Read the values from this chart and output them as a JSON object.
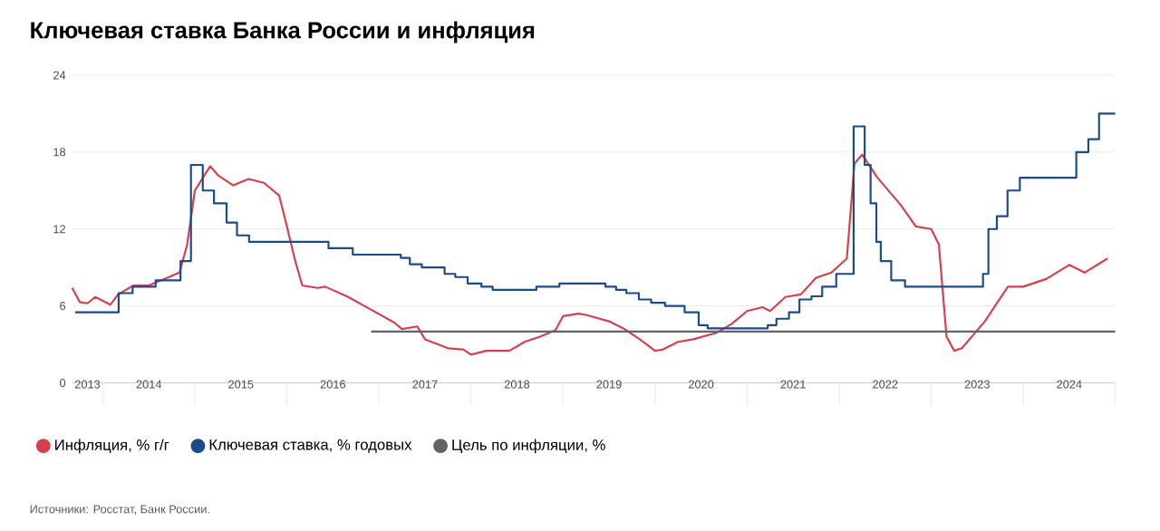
{
  "chart_data": {
    "type": "line",
    "title": "Ключевая ставка Банка России и инфляция",
    "series": [
      {
        "name": "Инфляция, % г/г",
        "color": "#d6404c",
        "x": [
          "2013-09",
          "2013-10",
          "2013-11",
          "2013-12",
          "2014-02",
          "2014-03",
          "2014-05",
          "2014-07",
          "2014-09",
          "2014-11",
          "2014-12",
          "2015-01",
          "2015-03",
          "2015-04",
          "2015-06",
          "2015-08",
          "2015-10",
          "2015-12",
          "2016-01",
          "2016-02",
          "2016-03",
          "2016-05",
          "2016-06",
          "2016-09",
          "2016-12",
          "2017-03",
          "2017-04",
          "2017-06",
          "2017-07",
          "2017-10",
          "2017-12",
          "2018-01",
          "2018-03",
          "2018-06",
          "2018-08",
          "2018-10",
          "2018-12",
          "2019-01",
          "2019-03",
          "2019-04",
          "2019-07",
          "2019-09",
          "2019-11",
          "2020-01",
          "2020-02",
          "2020-04",
          "2020-06",
          "2020-09",
          "2020-11",
          "2021-01",
          "2021-03",
          "2021-04",
          "2021-06",
          "2021-08",
          "2021-10",
          "2021-12",
          "2022-02",
          "2022-03",
          "2022-04",
          "2022-06",
          "2022-09",
          "2022-11",
          "2023-01",
          "2023-02",
          "2023-03",
          "2023-04",
          "2023-05",
          "2023-08",
          "2023-11",
          "2024-01",
          "2024-04",
          "2024-07",
          "2024-09",
          "2024-12"
        ],
        "values": [
          7.4,
          6.3,
          6.2,
          6.7,
          6.1,
          6.9,
          7.6,
          7.6,
          8.1,
          8.6,
          10.8,
          15.0,
          16.9,
          16.2,
          15.4,
          15.9,
          15.6,
          14.6,
          12.2,
          9.7,
          7.6,
          7.4,
          7.5,
          6.7,
          5.7,
          4.7,
          4.2,
          4.4,
          3.4,
          2.7,
          2.6,
          2.2,
          2.5,
          2.5,
          3.2,
          3.6,
          4.1,
          5.2,
          5.4,
          5.3,
          4.8,
          4.2,
          3.4,
          2.5,
          2.6,
          3.2,
          3.4,
          3.9,
          4.6,
          5.6,
          5.9,
          5.6,
          6.7,
          6.9,
          8.2,
          8.6,
          9.7,
          17.1,
          17.8,
          16.0,
          13.9,
          12.2,
          12.0,
          10.8,
          3.6,
          2.5,
          2.7,
          4.8,
          7.5,
          7.5,
          8.1,
          9.2,
          8.6,
          9.7
        ]
      },
      {
        "name": "Ключевая ставка, % годовых",
        "color": "#1d4a8a",
        "type": "step",
        "x": [
          "2013-09-13",
          "2014-03-03",
          "2014-04-28",
          "2014-07-28",
          "2014-11-05",
          "2014-12-16",
          "2015-02-02",
          "2015-03-16",
          "2015-05-05",
          "2015-06-16",
          "2015-08-03",
          "2016-06-14",
          "2016-09-19",
          "2017-03-27",
          "2017-05-02",
          "2017-06-19",
          "2017-09-18",
          "2017-10-30",
          "2017-12-18",
          "2018-02-12",
          "2018-03-26",
          "2018-09-17",
          "2018-12-17",
          "2019-06-17",
          "2019-07-29",
          "2019-09-09",
          "2019-10-28",
          "2019-12-16",
          "2020-02-10",
          "2020-04-27",
          "2020-06-22",
          "2020-07-27",
          "2021-03-22",
          "2021-04-26",
          "2021-06-15",
          "2021-07-26",
          "2021-09-13",
          "2021-10-25",
          "2021-12-20",
          "2022-02-28",
          "2022-04-11",
          "2022-05-04",
          "2022-05-27",
          "2022-06-14",
          "2022-07-25",
          "2022-09-19",
          "2023-07-24",
          "2023-08-15",
          "2023-09-18",
          "2023-10-30",
          "2023-12-18",
          "2024-07-29",
          "2024-09-16",
          "2024-10-28",
          "2025-01"
        ],
        "values": [
          5.5,
          7.0,
          7.5,
          8.0,
          9.5,
          17.0,
          15.0,
          14.0,
          12.5,
          11.5,
          11.0,
          10.5,
          10.0,
          9.75,
          9.25,
          9.0,
          8.5,
          8.25,
          7.75,
          7.5,
          7.25,
          7.5,
          7.75,
          7.5,
          7.25,
          7.0,
          6.5,
          6.25,
          6.0,
          5.5,
          4.5,
          4.25,
          4.5,
          5.0,
          5.5,
          6.5,
          6.75,
          7.5,
          8.5,
          20,
          17,
          14,
          11,
          9.5,
          8.0,
          7.5,
          8.5,
          12,
          13,
          15,
          16,
          18,
          19,
          21,
          21
        ]
      },
      {
        "name": "Цель по инфляции, %",
        "color": "#5f6469",
        "x": [
          "2016-12",
          "2025-01"
        ],
        "values": [
          4,
          4
        ]
      }
    ],
    "xlim": [
      "2013-09",
      "2025-01"
    ],
    "xticks": [
      {
        "value": "2013-11",
        "label": "2013"
      },
      {
        "value": "2014-01",
        "label": null
      },
      {
        "value": "2014-07",
        "label": "2014"
      },
      {
        "value": "2015-01",
        "label": null
      },
      {
        "value": "2015-07",
        "label": "2015"
      },
      {
        "value": "2016-01",
        "label": null
      },
      {
        "value": "2016-07",
        "label": "2016"
      },
      {
        "value": "2017-01",
        "label": null
      },
      {
        "value": "2017-07",
        "label": "2017"
      },
      {
        "value": "2018-01",
        "label": null
      },
      {
        "value": "2018-07",
        "label": "2018"
      },
      {
        "value": "2019-01",
        "label": null
      },
      {
        "value": "2019-07",
        "label": "2019"
      },
      {
        "value": "2020-01",
        "label": null
      },
      {
        "value": "2020-07",
        "label": "2020"
      },
      {
        "value": "2021-01",
        "label": null
      },
      {
        "value": "2021-07",
        "label": "2021"
      },
      {
        "value": "2022-01",
        "label": null
      },
      {
        "value": "2022-07",
        "label": "2022"
      },
      {
        "value": "2023-01",
        "label": null
      },
      {
        "value": "2023-07",
        "label": "2023"
      },
      {
        "value": "2024-01",
        "label": null
      },
      {
        "value": "2024-07",
        "label": "2024"
      },
      {
        "value": "2025-01",
        "label": null
      }
    ],
    "ylim": [
      0,
      24
    ],
    "yticks": [
      0,
      6,
      12,
      18,
      24
    ],
    "grid": "y",
    "legend": "bottom left",
    "annotations": [
      "Источники: Росстат, Банк России."
    ]
  }
}
